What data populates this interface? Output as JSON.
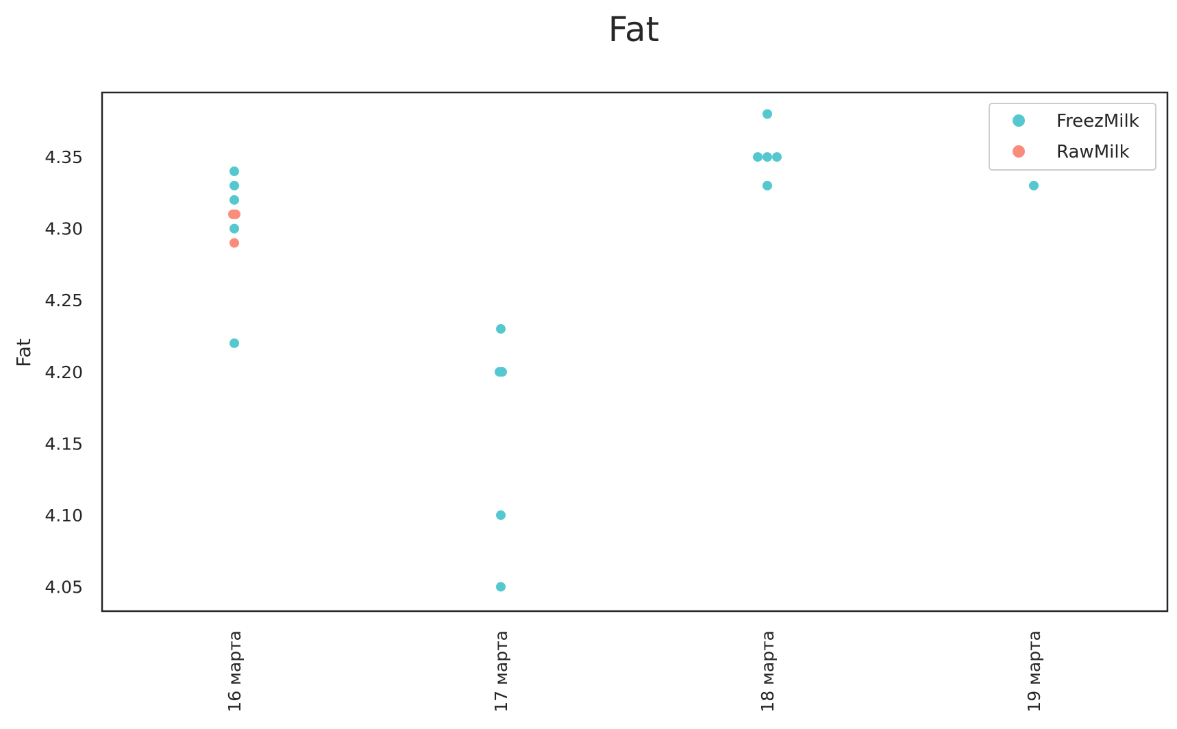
{
  "chart_data": {
    "type": "scatter",
    "title": "Fat",
    "xlabel": "",
    "ylabel": "Fat",
    "categories": [
      "16 марта",
      "17 марта",
      "18 марта",
      "19 марта"
    ],
    "ylim": [
      4.033,
      4.395
    ],
    "yticks": [
      "4.05",
      "4.10",
      "4.15",
      "4.20",
      "4.25",
      "4.30",
      "4.35"
    ],
    "ytick_values": [
      4.05,
      4.1,
      4.15,
      4.2,
      4.25,
      4.3,
      4.35
    ],
    "grid": false,
    "legend_position": "top-right",
    "series": [
      {
        "name": "FreezMilk",
        "color": "#55c8cf",
        "points": [
          {
            "category": "16 марта",
            "y": 4.34
          },
          {
            "category": "16 марта",
            "y": 4.33
          },
          {
            "category": "16 марта",
            "y": 4.32
          },
          {
            "category": "16 марта",
            "y": 4.3
          },
          {
            "category": "16 марта",
            "y": 4.22
          },
          {
            "category": "17 марта",
            "y": 4.23
          },
          {
            "category": "17 марта",
            "y": 4.2
          },
          {
            "category": "17 марта",
            "y": 4.2
          },
          {
            "category": "17 марта",
            "y": 4.1
          },
          {
            "category": "17 марта",
            "y": 4.05
          },
          {
            "category": "18 марта",
            "y": 4.38
          },
          {
            "category": "18 марта",
            "y": 4.35
          },
          {
            "category": "18 марта",
            "y": 4.35
          },
          {
            "category": "18 марта",
            "y": 4.35
          },
          {
            "category": "18 марта",
            "y": 4.33
          },
          {
            "category": "19 марта",
            "y": 4.33
          }
        ]
      },
      {
        "name": "RawMilk",
        "color": "#fa8c7c",
        "points": [
          {
            "category": "16 марта",
            "y": 4.31
          },
          {
            "category": "16 марта",
            "y": 4.31
          },
          {
            "category": "16 марта",
            "y": 4.29
          }
        ]
      }
    ]
  }
}
